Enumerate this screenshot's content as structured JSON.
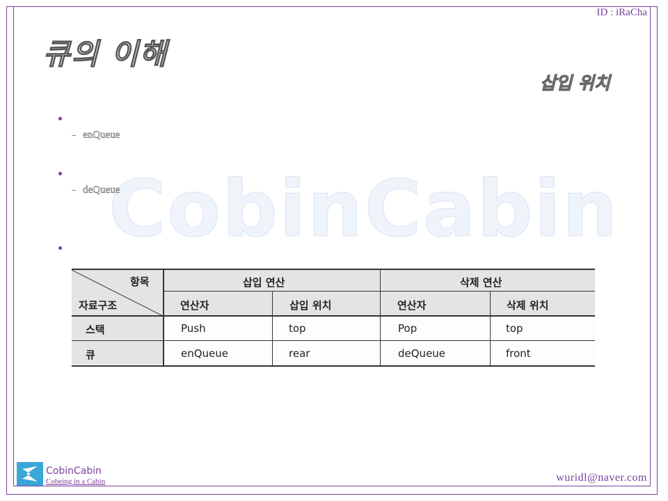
{
  "header": {
    "author_id": "ID : iRaCha"
  },
  "slide": {
    "title": "큐의 이해",
    "subtitle": "삽입 위치"
  },
  "watermark": {
    "text": "CobinCabin"
  },
  "bullets": [
    {
      "sub_item": "enQueue"
    },
    {
      "sub_item": "deQueue"
    },
    {
      "sub_item": ""
    }
  ],
  "table": {
    "corner_top": "항목",
    "corner_bottom": "자료구조",
    "group_headers": [
      "삽입 연산",
      "삭제 연산"
    ],
    "column_headers": [
      "연산자",
      "삽입 위치",
      "연산자",
      "삭제 위치"
    ],
    "rows": [
      {
        "label": "스택",
        "cells": [
          "Push",
          "top",
          "Pop",
          "top"
        ]
      },
      {
        "label": "큐",
        "cells": [
          "enQueue",
          "rear",
          "deQueue",
          "front"
        ]
      }
    ]
  },
  "footer": {
    "brand": "CobinCabin",
    "tagline": "Cobeing in a Cabin",
    "email": "wuridl@naver.com",
    "logo_color": "#3aa6d8",
    "accent_color": "#7a3f9e"
  }
}
